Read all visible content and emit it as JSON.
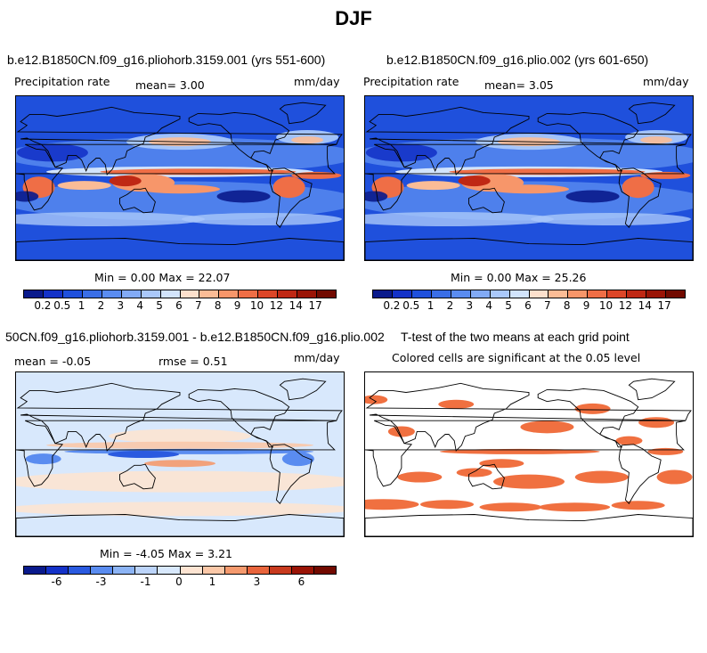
{
  "figure_title": "DJF",
  "panels": [
    {
      "title": "b.e12.B1850CN.f09_g16.pliohorb.3159.001 (yrs 551-600)",
      "left_label": "Precipitation rate",
      "center_label": "mean=   3.00",
      "right_label": "mm/day",
      "minmax": "Min =   0.00 Max =  22.07",
      "colorbar_labels": [
        "0.2",
        "0.5",
        "1",
        "2",
        "3",
        "4",
        "5",
        "6",
        "7",
        "8",
        "9",
        "10",
        "12",
        "14",
        "17"
      ]
    },
    {
      "title": "b.e12.B1850CN.f09_g16.plio.002 (yrs 601-650)",
      "left_label": "Precipitation rate",
      "center_label": "mean=   3.05",
      "right_label": "mm/day",
      "minmax": "Min =   0.00 Max =  25.26",
      "colorbar_labels": [
        "0.2",
        "0.5",
        "1",
        "2",
        "3",
        "4",
        "5",
        "6",
        "7",
        "8",
        "9",
        "10",
        "12",
        "14",
        "17"
      ]
    },
    {
      "title": "50CN.f09_g16.pliohorb.3159.001 - b.e12.B1850CN.f09_g16.plio.002",
      "left_label": "mean =  -0.05",
      "center_label": "rmse =   0.51",
      "right_label": "mm/day",
      "minmax": "Min =  -4.05 Max =   3.21",
      "colorbar_labels": [
        "-6",
        "-3",
        "-1",
        "0",
        "1",
        "3",
        "6"
      ]
    },
    {
      "title": "T-test of the two means at each grid point",
      "subtitle": "Colored cells are significant at the 0.05 level"
    }
  ],
  "colors": {
    "precip_scale": [
      "#0a1a8c",
      "#1432c8",
      "#1f50dc",
      "#3a6ee6",
      "#5a8cf0",
      "#82aaf5",
      "#aac8fa",
      "#d2e4fc",
      "#fde0cc",
      "#fbbc96",
      "#f7966a",
      "#ef6e46",
      "#dc4628",
      "#bf2814",
      "#9a1406",
      "#720a00"
    ],
    "diff_scale": [
      "#0a1a8c",
      "#1432c8",
      "#2a5ae0",
      "#5a8cf0",
      "#8cb4f5",
      "#bcd4fa",
      "#d8e8fc",
      "#fde4d2",
      "#fbc8a8",
      "#f59a6e",
      "#e8643c",
      "#c83a1e",
      "#9a1406",
      "#720a00"
    ],
    "ttest": "#f07040"
  }
}
